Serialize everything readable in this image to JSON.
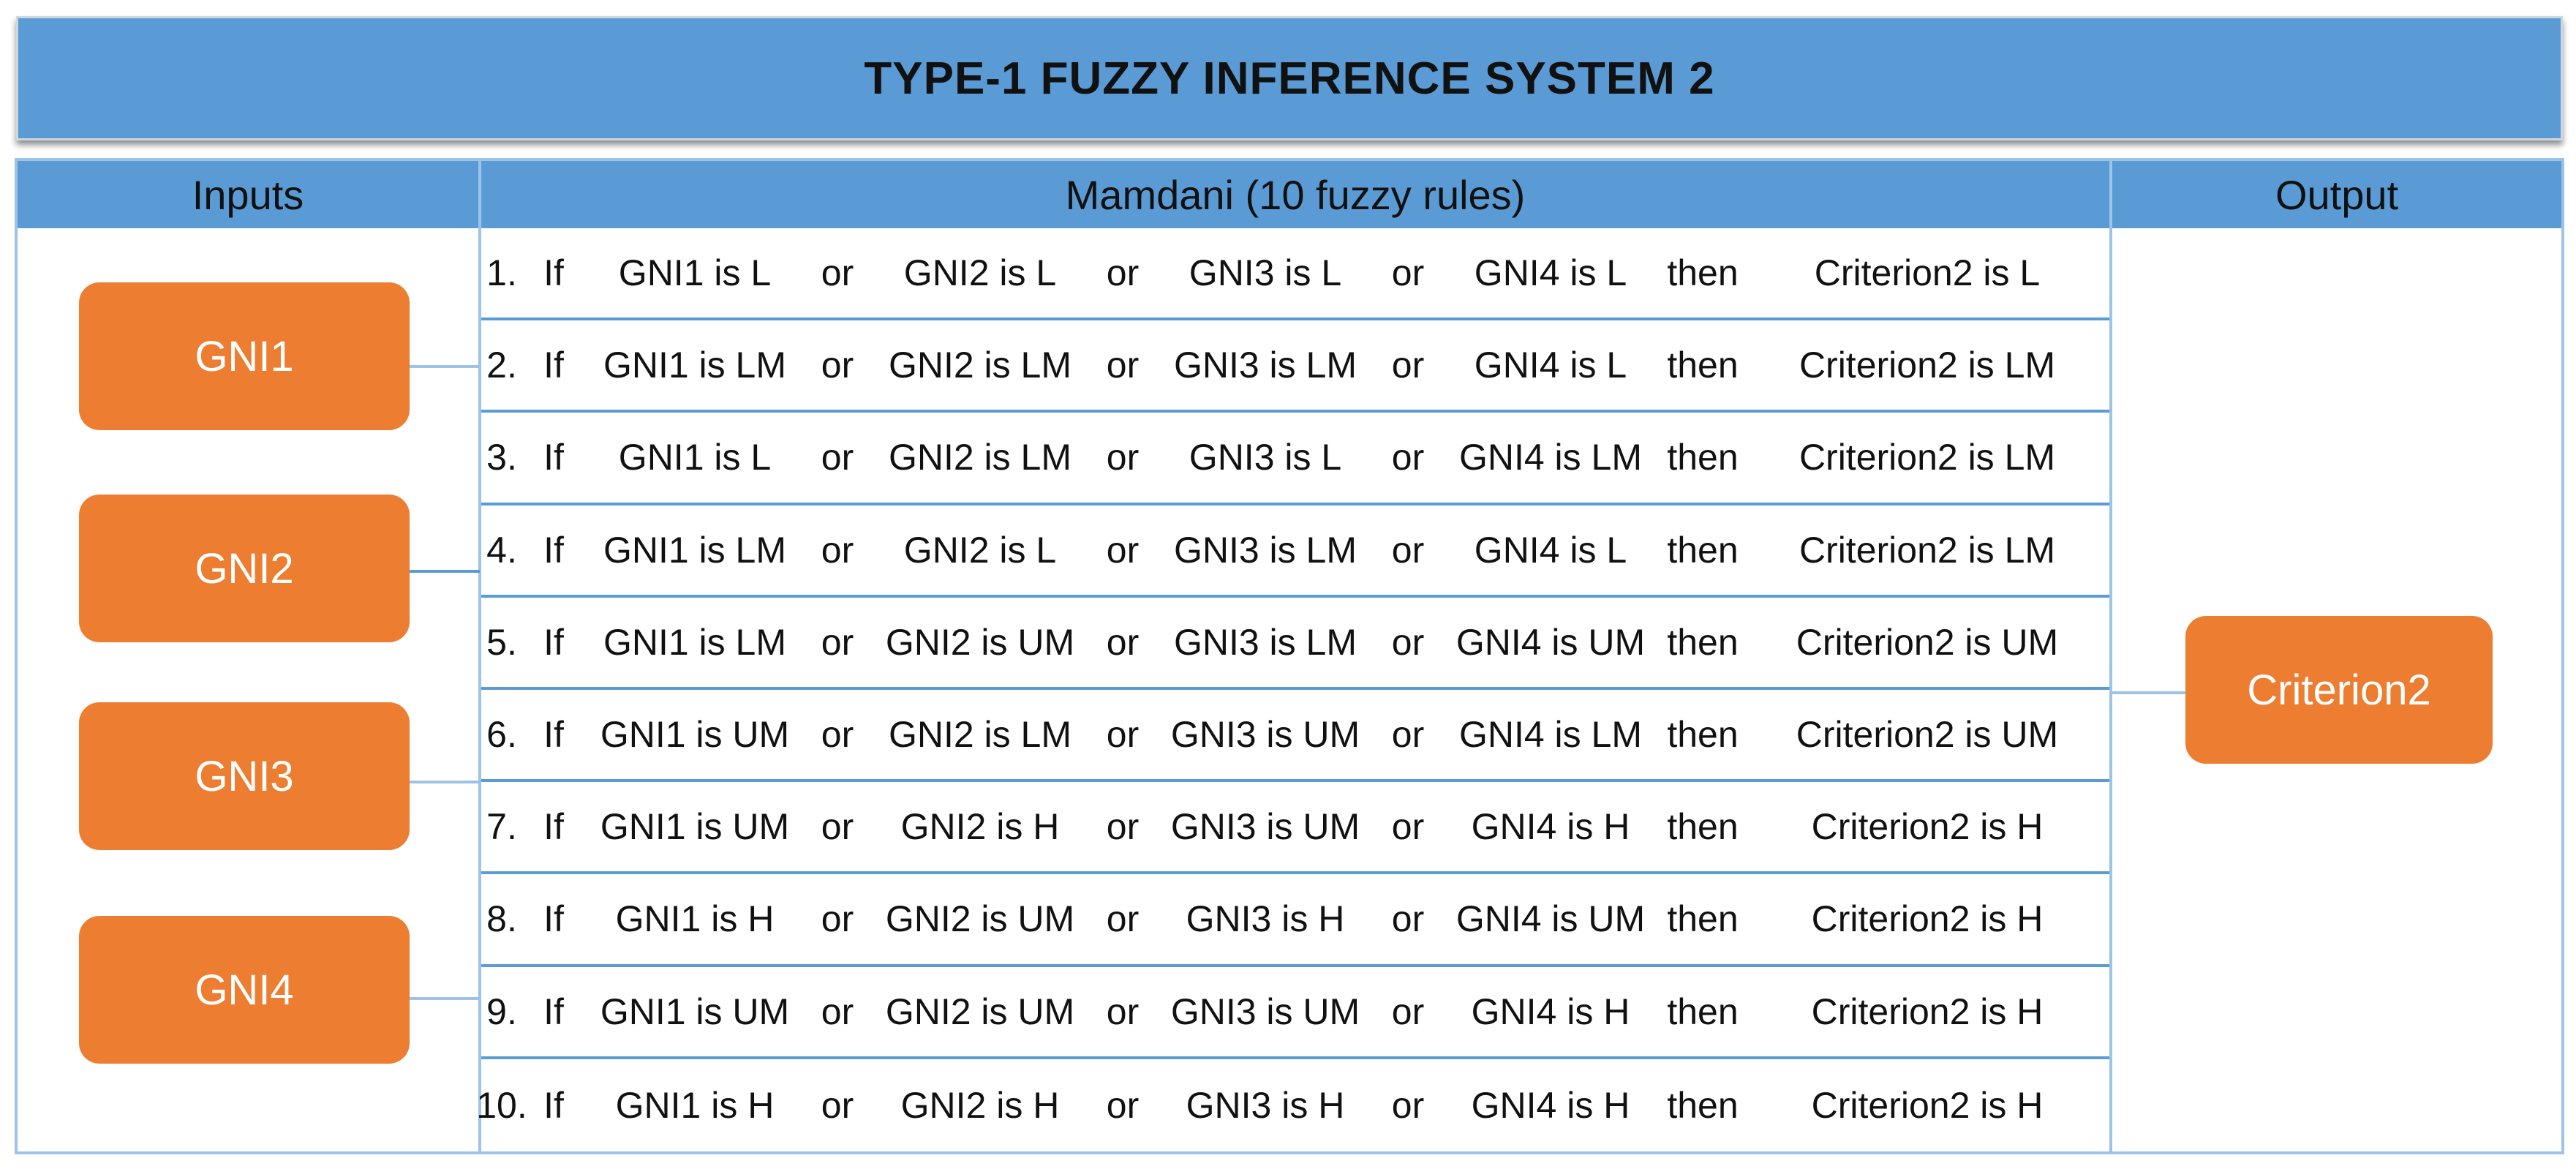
{
  "title": "TYPE-1 FUZZY INFERENCE SYSTEM 2",
  "headers": {
    "inputs": "Inputs",
    "rules": "Mamdani (10 fuzzy rules)",
    "output": "Output"
  },
  "inputs": [
    "GNI1",
    "GNI2",
    "GNI3",
    "GNI4"
  ],
  "output": "Criterion2",
  "rules": [
    {
      "num": "1.",
      "if": "If",
      "a": "GNI1 is L",
      "or1": "or",
      "b": "GNI2 is L",
      "or2": "or",
      "c": "GNI3 is L",
      "or3": "or",
      "d": "GNI4 is L",
      "then": "then",
      "out": "Criterion2 is L"
    },
    {
      "num": "2.",
      "if": "If",
      "a": "GNI1 is LM",
      "or1": "or",
      "b": "GNI2 is LM",
      "or2": "or",
      "c": "GNI3 is LM",
      "or3": "or",
      "d": "GNI4 is L",
      "then": "then",
      "out": "Criterion2 is LM"
    },
    {
      "num": "3.",
      "if": "If",
      "a": "GNI1 is L",
      "or1": "or",
      "b": "GNI2 is LM",
      "or2": "or",
      "c": "GNI3 is L",
      "or3": "or",
      "d": "GNI4 is LM",
      "then": "then",
      "out": "Criterion2 is LM"
    },
    {
      "num": "4.",
      "if": "If",
      "a": "GNI1 is LM",
      "or1": "or",
      "b": "GNI2 is L",
      "or2": "or",
      "c": "GNI3 is LM",
      "or3": "or",
      "d": "GNI4 is L",
      "then": "then",
      "out": "Criterion2 is LM"
    },
    {
      "num": "5.",
      "if": "If",
      "a": "GNI1 is LM",
      "or1": "or",
      "b": "GNI2 is UM",
      "or2": "or",
      "c": "GNI3 is LM",
      "or3": "or",
      "d": "GNI4 is UM",
      "then": "then",
      "out": "Criterion2 is UM"
    },
    {
      "num": "6.",
      "if": "If",
      "a": "GNI1 is UM",
      "or1": "or",
      "b": "GNI2 is LM",
      "or2": "or",
      "c": "GNI3 is UM",
      "or3": "or",
      "d": "GNI4 is LM",
      "then": "then",
      "out": "Criterion2 is UM"
    },
    {
      "num": "7.",
      "if": "If",
      "a": "GNI1 is UM",
      "or1": "or",
      "b": "GNI2 is H",
      "or2": "or",
      "c": "GNI3 is UM",
      "or3": "or",
      "d": "GNI4 is H",
      "then": "then",
      "out": "Criterion2 is H"
    },
    {
      "num": "8.",
      "if": "If",
      "a": "GNI1 is H",
      "or1": "or",
      "b": "GNI2 is UM",
      "or2": "or",
      "c": "GNI3 is H",
      "or3": "or",
      "d": "GNI4 is UM",
      "then": "then",
      "out": "Criterion2 is H"
    },
    {
      "num": "9.",
      "if": "If",
      "a": "GNI1 is UM",
      "or1": "or",
      "b": "GNI2 is UM",
      "or2": "or",
      "c": "GNI3 is UM",
      "or3": "or",
      "d": "GNI4 is H",
      "then": "then",
      "out": "Criterion2 is H"
    },
    {
      "num": "10.",
      "if": "If",
      "a": "GNI1 is H",
      "or1": "or",
      "b": "GNI2 is H",
      "or2": "or",
      "c": "GNI3 is H",
      "or3": "or",
      "d": "GNI4 is H",
      "then": "then",
      "out": "Criterion2 is H"
    }
  ],
  "colors": {
    "header_blue": "#5b9bd5",
    "border_light_blue": "#9dc3e6",
    "node_orange": "#ed7d31"
  }
}
